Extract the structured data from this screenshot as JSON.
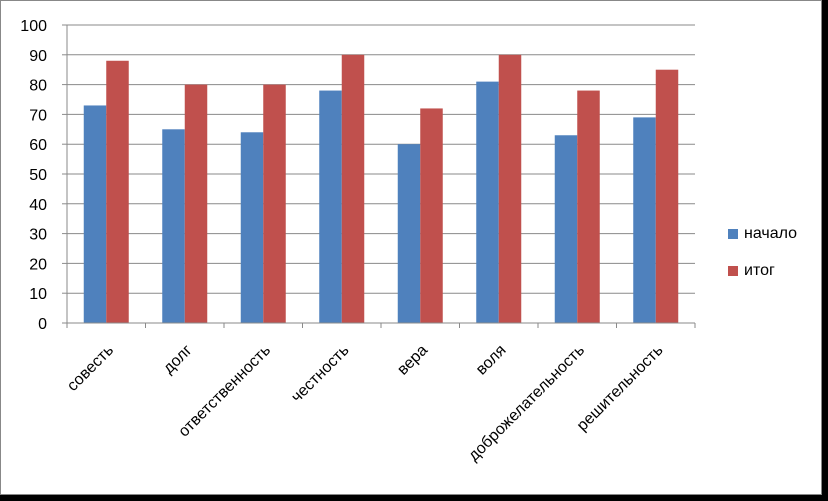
{
  "chart_data": {
    "type": "bar",
    "categories": [
      "совесть",
      "долг",
      "ответственность",
      "честность",
      "вера",
      "воля",
      "доброжелательность",
      "решительность"
    ],
    "series": [
      {
        "name": "начало",
        "values": [
          73,
          65,
          64,
          78,
          60,
          81,
          63,
          69
        ],
        "color": "#4F81BD"
      },
      {
        "name": "итог",
        "values": [
          88,
          80,
          80,
          90,
          72,
          90,
          78,
          85
        ],
        "color": "#C0504D"
      }
    ],
    "ylim": [
      0,
      100
    ],
    "yticks": [
      0,
      10,
      20,
      30,
      40,
      50,
      60,
      70,
      80,
      90,
      100
    ],
    "grid": true,
    "legend": "right"
  }
}
